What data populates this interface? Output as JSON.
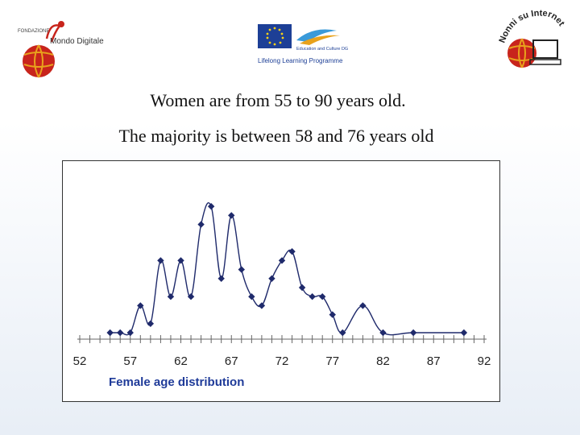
{
  "logos": {
    "left_text_top": "FONDAZIONE",
    "left_text_main": "Mondo Digitale",
    "center_text_1": "Education and Culture DG",
    "center_text_2": "Lifelong Learning Programme",
    "right_text": "Nonni su Internet"
  },
  "heading": {
    "line1": "Women are from 55 to 90 years old.",
    "line2": "The majority is between 58 and 76 years old"
  },
  "colors": {
    "series": "#1f2a6b",
    "xlabel": "#1f3b99",
    "logo_red": "#c8241c",
    "logo_gold": "#e8a21c",
    "eu_blue": "#1d3f96"
  },
  "chart_data": {
    "type": "line",
    "xlabel": "Female age distribution",
    "xlim": [
      52,
      92
    ],
    "xticks": [
      52,
      57,
      62,
      67,
      72,
      77,
      82,
      87,
      92
    ],
    "ylim": [
      0,
      15
    ],
    "grid": false,
    "legend": "none",
    "smooth": true,
    "series": [
      {
        "x": [
          55,
          56,
          57,
          58,
          59,
          60,
          61,
          62,
          63,
          64,
          65,
          66,
          67,
          68,
          69,
          70,
          71,
          72,
          73,
          74,
          75,
          76,
          77,
          78,
          80,
          82,
          85,
          90
        ],
        "y": [
          0,
          0,
          0,
          3,
          1,
          8,
          4,
          8,
          4,
          12,
          14,
          6,
          13,
          7,
          4,
          3,
          6,
          8,
          9,
          5,
          4,
          4,
          2,
          0,
          3,
          0,
          0,
          0
        ]
      }
    ]
  }
}
